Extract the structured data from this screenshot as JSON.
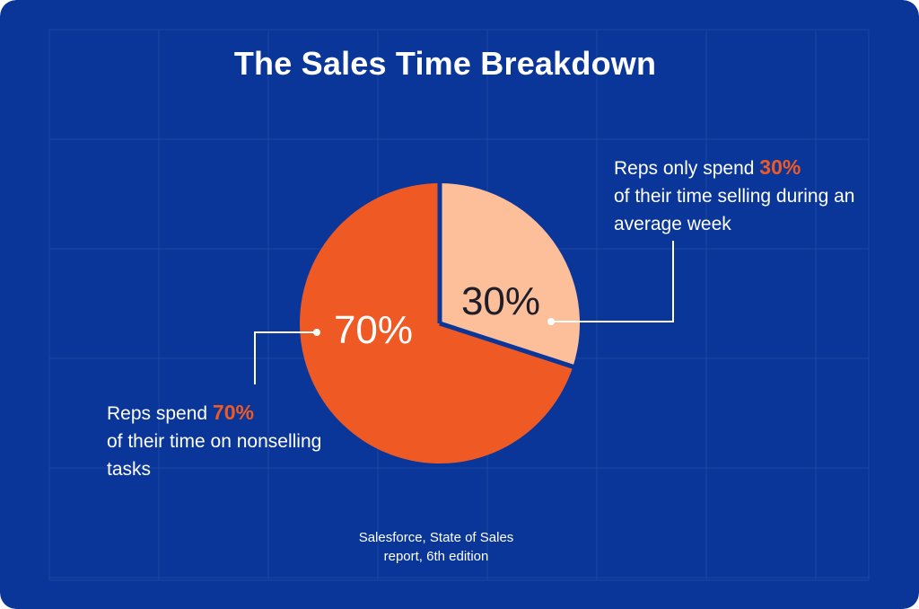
{
  "colors": {
    "background": "#0a3699",
    "grid": "#2a52ab",
    "slice_large": "#ef5a24",
    "slice_small": "#fdbf99",
    "text_light": "#ffffff",
    "text_dark": "#1e1e2a"
  },
  "title": "The Sales Time Breakdown",
  "chart_data": {
    "type": "pie",
    "title": "The Sales Time Breakdown",
    "slices": [
      {
        "label": "70%",
        "value": 70,
        "color": "#ef5a24"
      },
      {
        "label": "30%",
        "value": 30,
        "color": "#fdbf99"
      }
    ]
  },
  "callouts": {
    "right": {
      "prefix": "Reps only spend ",
      "highlight": "30%",
      "suffix": "of their time selling during an average week"
    },
    "left": {
      "prefix": "Reps spend ",
      "highlight": "70%",
      "suffix": "of their time on nonselling tasks"
    }
  },
  "source": {
    "line1": "Salesforce, State of Sales",
    "line2": "report, 6th edition"
  }
}
